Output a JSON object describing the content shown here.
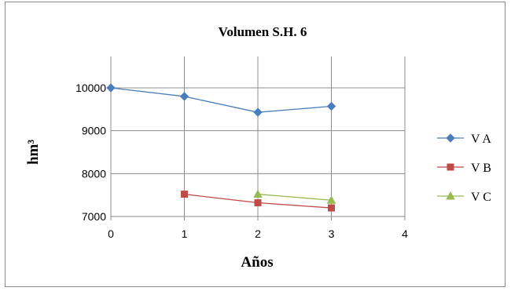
{
  "chart_data": {
    "type": "line",
    "title": "Volumen S.H. 6",
    "xlabel": "Años",
    "ylabel": "hm³",
    "xlim": [
      0,
      4
    ],
    "ylim": [
      7000,
      10000
    ],
    "x_ticks": [
      0,
      1,
      2,
      3,
      4
    ],
    "y_ticks": [
      7000,
      8000,
      9000,
      10000
    ],
    "grid": "horizontal and vertical",
    "legend_position": "right",
    "series": [
      {
        "name": "V A",
        "color": "#4a7ebb",
        "marker": "diamond",
        "x": [
          0,
          1,
          2,
          3
        ],
        "y": [
          10000,
          9800,
          9430,
          9570
        ]
      },
      {
        "name": "V B",
        "color": "#be4b48",
        "marker": "square",
        "x": [
          1,
          2,
          3
        ],
        "y": [
          7520,
          7320,
          7200
        ]
      },
      {
        "name": "V C",
        "color": "#98b954",
        "marker": "triangle",
        "x": [
          2,
          3
        ],
        "y": [
          7520,
          7380
        ]
      }
    ]
  }
}
